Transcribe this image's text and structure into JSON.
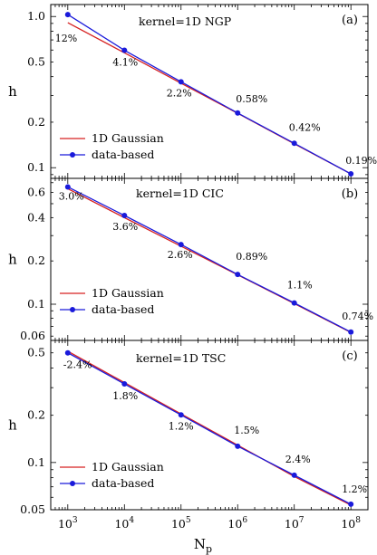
{
  "chart_data": [
    {
      "type": "line",
      "panel_tag": "(a)",
      "kernel_label": "kernel=1D NGP",
      "ylabel": "h",
      "log_x": true,
      "log_y": true,
      "xlim": [
        500,
        200000000
      ],
      "ylim": [
        0.085,
        1.2
      ],
      "y_ticks": [
        1.0,
        0.5,
        0.2,
        0.1
      ],
      "y_tick_labels": [
        "1.0",
        "0.5",
        "0.2",
        "0.1"
      ],
      "x": [
        1000,
        10000,
        100000,
        1000000,
        10000000,
        100000000
      ],
      "series": [
        {
          "name": "1D Gaussian",
          "color": "#d62020",
          "values": [
            0.91,
            0.575,
            0.362,
            0.229,
            0.144,
            0.091
          ],
          "markers": false
        },
        {
          "name": "data-based",
          "color": "#1a1adb",
          "values": [
            1.03,
            0.598,
            0.37,
            0.23,
            0.145,
            0.091
          ],
          "markers": true
        }
      ],
      "annotations": [
        "12%",
        "4.1%",
        "2.2%",
        "0.58%",
        "0.42%",
        "0.19%"
      ],
      "legend_position": "bottom-left"
    },
    {
      "type": "line",
      "panel_tag": "(b)",
      "kernel_label": "kernel=1D CIC",
      "ylabel": "h",
      "log_x": true,
      "log_y": true,
      "xlim": [
        500,
        200000000
      ],
      "ylim": [
        0.056,
        0.75
      ],
      "y_ticks": [
        0.6,
        0.4,
        0.2,
        0.1,
        0.06
      ],
      "y_tick_labels": [
        "0.6",
        "0.4",
        "0.2",
        "0.1",
        "0.06"
      ],
      "x": [
        1000,
        10000,
        100000,
        1000000,
        10000000,
        100000000
      ],
      "series": [
        {
          "name": "1D Gaussian",
          "color": "#d62020",
          "values": [
            0.635,
            0.4,
            0.253,
            0.16,
            0.101,
            0.0636
          ],
          "markers": false
        },
        {
          "name": "data-based",
          "color": "#1a1adb",
          "values": [
            0.654,
            0.414,
            0.26,
            0.161,
            0.102,
            0.064
          ],
          "markers": true
        }
      ],
      "annotations": [
        "3.0%",
        "3.6%",
        "2.6%",
        "0.89%",
        "1.1%",
        "0.74%"
      ],
      "legend_position": "bottom-left"
    },
    {
      "type": "line",
      "panel_tag": "(c)",
      "kernel_label": "kernel=1D TSC",
      "ylabel": "h",
      "xlabel_main": "N",
      "xlabel_sub": "p",
      "log_x": true,
      "log_y": true,
      "xlim": [
        500,
        200000000
      ],
      "ylim": [
        0.05,
        0.6
      ],
      "y_ticks": [
        0.5,
        0.2,
        0.1,
        0.05
      ],
      "y_tick_labels": [
        "0.5",
        "0.2",
        "0.1",
        "0.05"
      ],
      "x_ticks": [
        1000,
        10000,
        100000,
        1000000,
        10000000,
        100000000
      ],
      "x_tick_exponents": [
        "3",
        "4",
        "5",
        "6",
        "7",
        "8"
      ],
      "x_tick_base": "10",
      "x": [
        1000,
        10000,
        100000,
        1000000,
        10000000,
        100000000
      ],
      "series": [
        {
          "name": "1D Gaussian",
          "color": "#d62020",
          "values": [
            0.512,
            0.323,
            0.204,
            0.129,
            0.0814,
            0.0535
          ],
          "markers": false
        },
        {
          "name": "data-based",
          "color": "#1a1adb",
          "values": [
            0.5,
            0.317,
            0.201,
            0.127,
            0.083,
            0.0542
          ],
          "markers": true
        }
      ],
      "annotations": [
        "-2.4%",
        "1.8%",
        "1.2%",
        "1.5%",
        "2.4%",
        "1.2%"
      ],
      "legend_position": "bottom-left"
    }
  ]
}
